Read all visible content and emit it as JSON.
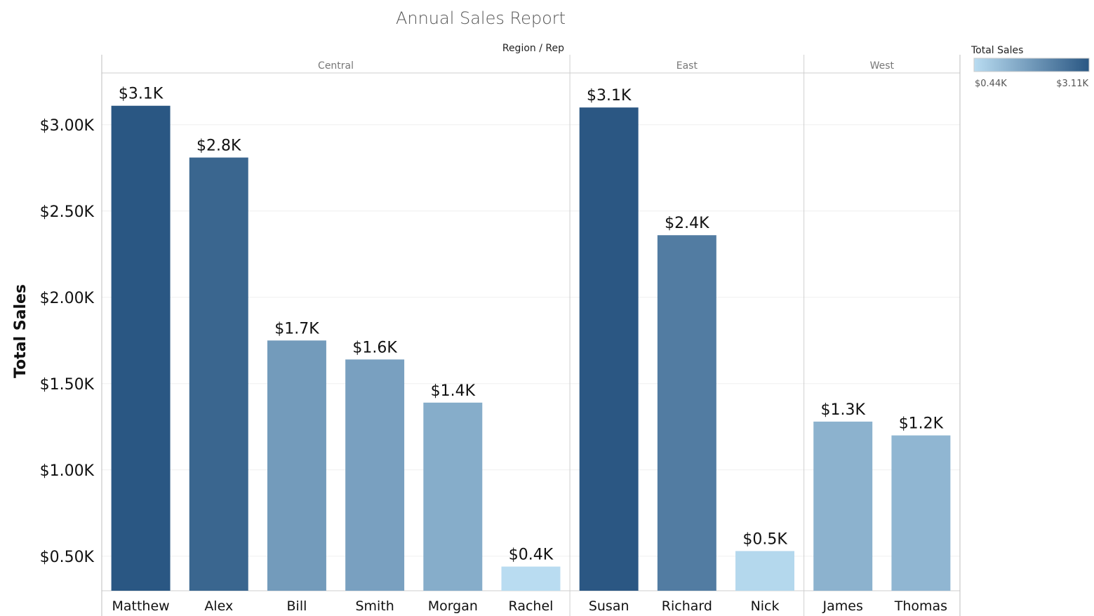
{
  "chart_data": {
    "type": "bar",
    "title": "Annual Sales Report",
    "column_header": "Region / Rep",
    "ylabel": "Total Sales",
    "xlabel": "",
    "ylim": [
      0.3,
      3.3
    ],
    "yticks": [
      0.5,
      1.0,
      1.5,
      2.0,
      2.5,
      3.0
    ],
    "ytick_labels": [
      "$0.50K",
      "$1.00K",
      "$1.50K",
      "$2.00K",
      "$2.50K",
      "$3.00K"
    ],
    "regions": [
      {
        "name": "Central",
        "reps": [
          {
            "name": "Matthew",
            "value": 3.11,
            "label": "$3.1K"
          },
          {
            "name": "Alex",
            "value": 2.81,
            "label": "$2.8K"
          },
          {
            "name": "Bill",
            "value": 1.75,
            "label": "$1.7K"
          },
          {
            "name": "Smith",
            "value": 1.64,
            "label": "$1.6K"
          },
          {
            "name": "Morgan",
            "value": 1.39,
            "label": "$1.4K"
          },
          {
            "name": "Rachel",
            "value": 0.44,
            "label": "$0.4K"
          }
        ]
      },
      {
        "name": "East",
        "reps": [
          {
            "name": "Susan",
            "value": 3.1,
            "label": "$3.1K"
          },
          {
            "name": "Richard",
            "value": 2.36,
            "label": "$2.4K"
          },
          {
            "name": "Nick",
            "value": 0.53,
            "label": "$0.5K"
          }
        ]
      },
      {
        "name": "West",
        "reps": [
          {
            "name": "James",
            "value": 1.28,
            "label": "$1.3K"
          },
          {
            "name": "Thomas",
            "value": 1.2,
            "label": "$1.2K"
          }
        ]
      }
    ],
    "grid": true,
    "legend": {
      "title": "Total Sales",
      "min_label": "$0.44K",
      "max_label": "$3.11K",
      "min_value": 0.44,
      "max_value": 3.11,
      "color_min": "#b9dcf1",
      "color_max": "#2a5783",
      "placement": "top-right"
    }
  }
}
